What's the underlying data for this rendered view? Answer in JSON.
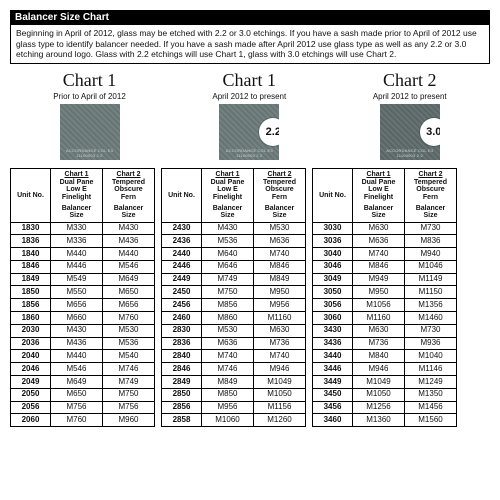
{
  "title": "Balancer Size Chart",
  "description": "Beginning in April of 2012, glass may be etched with 2.2 or 3.0 etchings. If you have a sash made prior to April of 2012 use glass type to identify balancer needed. If you have a sash made after April 2012 use glass type as well as any 2.2 or 3.0 etching around logo. Glass with 2.2 etchings will use Chart 1, glass with 3.0 etchings will use Chart 2.",
  "charts": [
    {
      "title": "Chart 1",
      "subtitle": "Prior to April of 2012",
      "swatch_color": "#6d7a7a",
      "badge": ""
    },
    {
      "title": "Chart 1",
      "subtitle": "April 2012 to present",
      "swatch_color": "#6d7a7a",
      "badge": "2.2"
    },
    {
      "title": "Chart 2",
      "subtitle": "April 2012 to present",
      "swatch_color": "#5f6b6b",
      "badge": "3.0"
    }
  ],
  "col_header": {
    "c1_line1": "Chart 1",
    "c1_line2": "Dual Pane",
    "c1_line3": "Low E",
    "c1_line4": "Finelight",
    "c2_line1": "Chart 2",
    "c2_line2": "Tempered",
    "c2_line3": "Obscure",
    "c2_line4": "Fern",
    "balancer_size": "Balancer Size",
    "unit_no": "Unit No."
  },
  "tables": [
    {
      "widths": {
        "unit": 40,
        "size": 52
      },
      "rows": [
        {
          "unit": "1830",
          "c1": "M330",
          "c2": "M430"
        },
        {
          "unit": "1836",
          "c1": "M336",
          "c2": "M436"
        },
        {
          "unit": "1840",
          "c1": "M440",
          "c2": "M440"
        },
        {
          "unit": "1846",
          "c1": "M446",
          "c2": "M546"
        },
        {
          "unit": "1849",
          "c1": "M549",
          "c2": "M649"
        },
        {
          "unit": "1850",
          "c1": "M550",
          "c2": "M650"
        },
        {
          "unit": "1856",
          "c1": "M656",
          "c2": "M656"
        },
        {
          "unit": "1860",
          "c1": "M660",
          "c2": "M760"
        },
        {
          "unit": "2030",
          "c1": "M430",
          "c2": "M530"
        },
        {
          "unit": "2036",
          "c1": "M436",
          "c2": "M536"
        },
        {
          "unit": "2040",
          "c1": "M440",
          "c2": "M540"
        },
        {
          "unit": "2046",
          "c1": "M546",
          "c2": "M746"
        },
        {
          "unit": "2049",
          "c1": "M649",
          "c2": "M749"
        },
        {
          "unit": "2050",
          "c1": "M650",
          "c2": "M750"
        },
        {
          "unit": "2056",
          "c1": "M756",
          "c2": "M756"
        },
        {
          "unit": "2060",
          "c1": "M760",
          "c2": "M960"
        }
      ]
    },
    {
      "widths": {
        "unit": 40,
        "size": 52
      },
      "rows": [
        {
          "unit": "2430",
          "c1": "M430",
          "c2": "M530"
        },
        {
          "unit": "2436",
          "c1": "M536",
          "c2": "M636"
        },
        {
          "unit": "2440",
          "c1": "M640",
          "c2": "M740"
        },
        {
          "unit": "2446",
          "c1": "M646",
          "c2": "M846"
        },
        {
          "unit": "2449",
          "c1": "M749",
          "c2": "M849"
        },
        {
          "unit": "2450",
          "c1": "M750",
          "c2": "M950"
        },
        {
          "unit": "2456",
          "c1": "M856",
          "c2": "M956"
        },
        {
          "unit": "2460",
          "c1": "M860",
          "c2": "M1160"
        },
        {
          "unit": "2830",
          "c1": "M530",
          "c2": "M630"
        },
        {
          "unit": "2836",
          "c1": "M636",
          "c2": "M736"
        },
        {
          "unit": "2840",
          "c1": "M740",
          "c2": "M740"
        },
        {
          "unit": "2846",
          "c1": "M746",
          "c2": "M946"
        },
        {
          "unit": "2849",
          "c1": "M849",
          "c2": "M1049"
        },
        {
          "unit": "2850",
          "c1": "M850",
          "c2": "M1050"
        },
        {
          "unit": "2856",
          "c1": "M956",
          "c2": "M1156"
        },
        {
          "unit": "2858",
          "c1": "M1060",
          "c2": "M1260"
        }
      ]
    },
    {
      "widths": {
        "unit": 40,
        "size": 52
      },
      "rows": [
        {
          "unit": "3030",
          "c1": "M630",
          "c2": "M730"
        },
        {
          "unit": "3036",
          "c1": "M636",
          "c2": "M836"
        },
        {
          "unit": "3040",
          "c1": "M740",
          "c2": "M940"
        },
        {
          "unit": "3046",
          "c1": "M846",
          "c2": "M1046"
        },
        {
          "unit": "3049",
          "c1": "M949",
          "c2": "M1149"
        },
        {
          "unit": "3050",
          "c1": "M950",
          "c2": "M1150"
        },
        {
          "unit": "3056",
          "c1": "M1056",
          "c2": "M1356"
        },
        {
          "unit": "3060",
          "c1": "M1160",
          "c2": "M1460"
        },
        {
          "unit": "3430",
          "c1": "M630",
          "c2": "M730"
        },
        {
          "unit": "3436",
          "c1": "M736",
          "c2": "M936"
        },
        {
          "unit": "3440",
          "c1": "M840",
          "c2": "M1040"
        },
        {
          "unit": "3446",
          "c1": "M946",
          "c2": "M1146"
        },
        {
          "unit": "3449",
          "c1": "M1049",
          "c2": "M1249"
        },
        {
          "unit": "3450",
          "c1": "M1050",
          "c2": "M1350"
        },
        {
          "unit": "3456",
          "c1": "M1256",
          "c2": "M1456"
        },
        {
          "unit": "3460",
          "c1": "M1360",
          "c2": "M1560"
        }
      ]
    }
  ],
  "colors": {
    "header_bg": "#000000",
    "header_fg": "#ffffff",
    "border": "#000000",
    "swatch_text": "#cfd4d4"
  }
}
